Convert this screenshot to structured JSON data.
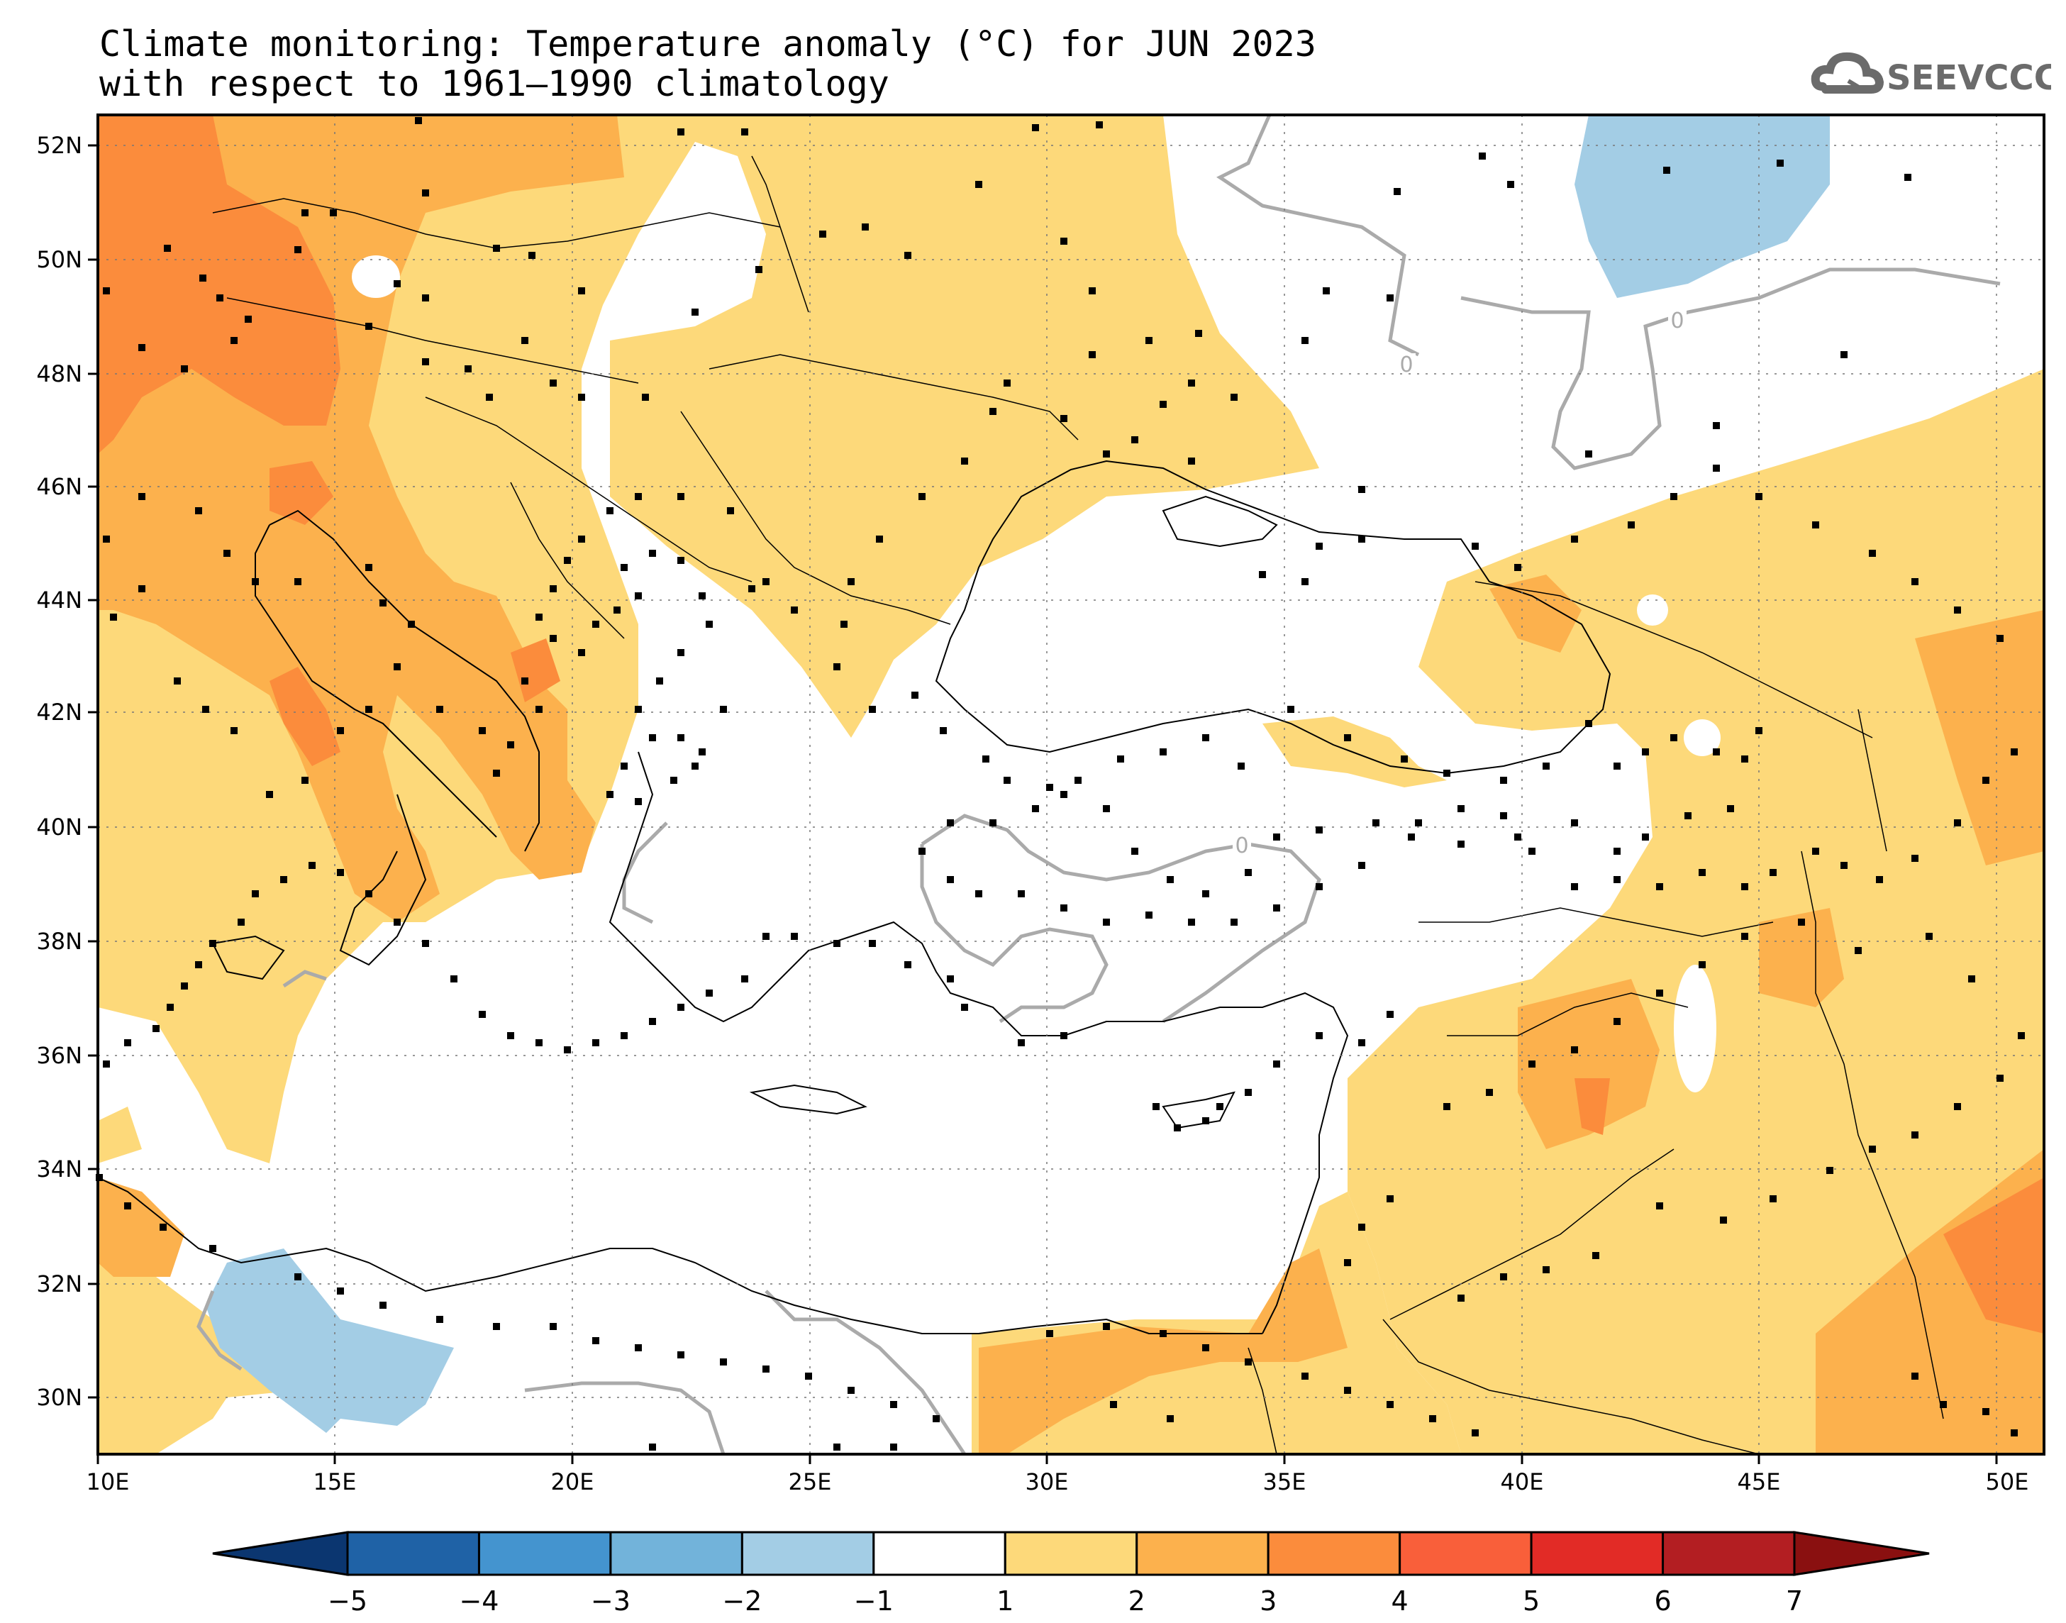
{
  "title": {
    "line1": "Climate monitoring: Temperature anomaly (°C) for JUN 2023",
    "line2": "with respect to 1961–1990 climatology"
  },
  "logo": {
    "text": "SEEVCCC",
    "icon": "cloud-icon"
  },
  "map": {
    "lon_ticks": [
      "10E",
      "15E",
      "20E",
      "25E",
      "30E",
      "35E",
      "40E",
      "45E",
      "50E"
    ],
    "lat_ticks": [
      "52N",
      "50N",
      "48N",
      "46N",
      "44N",
      "42N",
      "40N",
      "38N",
      "36N",
      "34N",
      "32N",
      "30N"
    ],
    "contour_label": "0"
  },
  "colorbar": {
    "labels": [
      "−5",
      "−4",
      "−3",
      "−2",
      "−1",
      "1",
      "2",
      "3",
      "4",
      "5",
      "6",
      "7"
    ],
    "colors": [
      "#1f62a6",
      "#4494cf",
      "#72b3da",
      "#a3cde5",
      "#ffffff",
      "#fdd97a",
      "#fcb14d",
      "#fb8c3c",
      "#f95f3a",
      "#e22b26",
      "#b31e22"
    ],
    "end_low_color": "#0b3670",
    "end_high_color": "#8a1010"
  },
  "colors": {
    "anomaly_1_2": "#fdd97a",
    "anomaly_2_3": "#fcb14d",
    "anomaly_3_4": "#fb8c3c",
    "anomaly_neg_1_2": "#a3cde5",
    "zero_contour": "#aaaaaa"
  }
}
